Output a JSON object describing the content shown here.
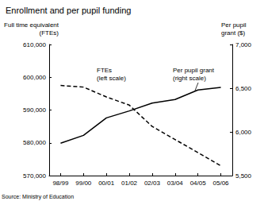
{
  "chart_data": {
    "type": "line",
    "title": "Enrollment and per pupil funding",
    "source": "Source: Ministry of Education",
    "y_label": "Full time equivalent\n(FTEs)",
    "y2_label": "Per pupil\ngrant ($)",
    "categories": [
      "98/99",
      "99/00",
      "00/01",
      "01/02",
      "02/03",
      "03/04",
      "04/05",
      "05/06"
    ],
    "series": [
      {
        "name": "FTEs",
        "color": "#000000",
        "line_style": "dashed",
        "values": [
          597500,
          597000,
          594000,
          591500,
          585000,
          581000,
          577000,
          573000
        ]
      },
      {
        "name": "Per pupil grant",
        "color": "#000000",
        "line_style": "solid",
        "axis": "y2",
        "values": [
          5870,
          5960,
          6160,
          6240,
          6330,
          6370,
          6480,
          6510
        ]
      }
    ],
    "annotations": [
      {
        "series": "FTEs",
        "text": "FTEs\n(left scale)"
      },
      {
        "series": "Per pupil grant",
        "text": "Per pupil grant\n(right scale)"
      }
    ],
    "ylim": [
      570000,
      610000
    ],
    "yticks": [
      {
        "value": 570000,
        "label": "570,000"
      },
      {
        "value": 580000,
        "label": "580,000"
      },
      {
        "value": 590000,
        "label": "590,000"
      },
      {
        "value": 600000,
        "label": "600,000"
      },
      {
        "value": 610000,
        "label": "610,000"
      }
    ],
    "y2lim": [
      5500,
      7000
    ],
    "y2ticks": [
      {
        "value": 5500,
        "label": "5,500"
      },
      {
        "value": 6000,
        "label": "6,000"
      },
      {
        "value": 6500,
        "label": "6,500"
      },
      {
        "value": 7000,
        "label": "7,000"
      }
    ],
    "grid": false
  }
}
